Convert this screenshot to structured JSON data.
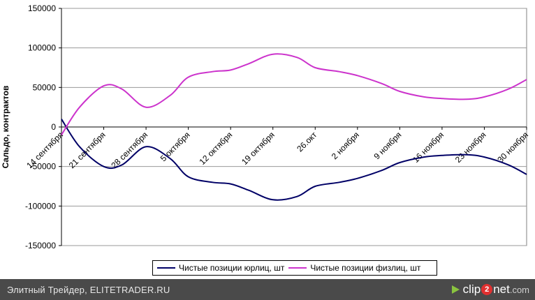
{
  "chart_data": {
    "type": "line",
    "title": "",
    "xlabel": "",
    "ylabel": "Сальдо, контрактов",
    "ylim": [
      -150000,
      150000
    ],
    "yticks": [
      150000,
      100000,
      50000,
      0,
      -50000,
      -100000,
      -150000
    ],
    "ytick_labels": [
      "150000",
      "100000",
      "50000",
      "0",
      "-50000",
      "-100000",
      "-150000"
    ],
    "categories": [
      "14 сентября",
      "21 сентября",
      "28 сентября",
      "5 октября",
      "12 октября",
      "19 октября",
      "26.окт",
      "2 ноября",
      "9 ноября",
      "16 ноября",
      "23 ноября",
      "30 ноября"
    ],
    "x": [
      0,
      7,
      14,
      21,
      28,
      35,
      42,
      49,
      56,
      63,
      70,
      77
    ],
    "xlim": [
      0,
      77
    ],
    "series": [
      {
        "name": "Чистые позиции юрлиц, шт",
        "color": "#000066",
        "x": [
          0,
          3,
          7,
          10,
          14,
          18,
          21,
          25,
          28,
          31,
          35,
          39,
          42,
          46,
          49,
          53,
          56,
          60,
          63,
          67,
          70,
          74,
          77
        ],
        "values": [
          10000,
          -25000,
          -50000,
          -48000,
          -25000,
          -40000,
          -63000,
          -70000,
          -72000,
          -80000,
          -92000,
          -88000,
          -75000,
          -70000,
          -65000,
          -55000,
          -45000,
          -38000,
          -36000,
          -35000,
          -38000,
          -48000,
          -60000
        ]
      },
      {
        "name": "Чистые позиции физлиц, шт",
        "color": "#cc33cc",
        "x": [
          0,
          3,
          7,
          10,
          14,
          18,
          21,
          25,
          28,
          31,
          35,
          39,
          42,
          46,
          49,
          53,
          56,
          60,
          63,
          67,
          70,
          74,
          77
        ],
        "values": [
          -10000,
          25000,
          52000,
          48000,
          25000,
          40000,
          63000,
          70000,
          72000,
          80000,
          92000,
          88000,
          75000,
          70000,
          65000,
          55000,
          45000,
          38000,
          36000,
          35000,
          38000,
          48000,
          60000
        ]
      }
    ],
    "legend": "bottom"
  },
  "footer": {
    "left_text": "Элитный Трейдер, ELITETRADER.RU",
    "brand": {
      "part1": "clip",
      "badge": "2",
      "part2": "net",
      "suffix": ".com"
    }
  }
}
